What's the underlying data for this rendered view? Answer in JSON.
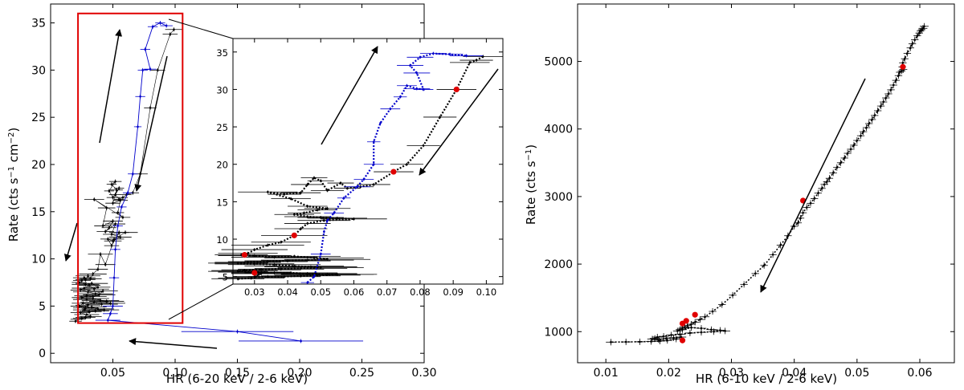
{
  "chart_data": [
    {
      "id": "left",
      "type": "scatter",
      "xlabel": "HR (6-20 keV / 2-6 keV)",
      "ylabel": "Rate (cts s$^{-1}$ cm$^{-2}$)",
      "xlim": [
        0.0,
        0.3
      ],
      "ylim": [
        -1.0,
        37.0
      ],
      "xticks": [
        "0.05",
        "0.10",
        "0.15",
        "0.20",
        "0.25",
        "0.30"
      ],
      "yticks": [
        "0",
        "5",
        "10",
        "15",
        "20",
        "25",
        "30",
        "35"
      ],
      "highlight_box": {
        "x": [
          0.022,
          0.106
        ],
        "y": [
          3.2,
          36.0
        ],
        "color": "#e00000"
      },
      "series": [
        {
          "color": "#0000cc",
          "x": [
            0.201,
            0.15,
            0.046,
            0.048,
            0.05,
            0.051,
            0.052,
            0.054,
            0.057,
            0.062,
            0.066,
            0.07,
            0.072,
            0.074,
            0.08,
            0.076,
            0.082,
            0.088,
            0.093
          ],
          "y": [
            1.3,
            2.3,
            3.5,
            4.2,
            5.0,
            8.0,
            11.0,
            13.5,
            15.5,
            17.0,
            19.0,
            24.0,
            27.2,
            30.0,
            30.1,
            32.2,
            34.6,
            35.0,
            34.7
          ],
          "xerr": [
            0.05,
            0.045,
            0.01,
            0.006,
            0.008,
            0.004,
            0.004,
            0.004,
            0.004,
            0.004,
            0.004,
            0.003,
            0.004,
            0.004,
            0.005,
            0.004,
            0.004,
            0.004,
            0.005
          ]
        },
        {
          "color": "#000000",
          "x": [
            0.099,
            0.096,
            0.086,
            0.08,
            0.072,
            0.066,
            0.061,
            0.058,
            0.055,
            0.052,
            0.055,
            0.05,
            0.047,
            0.052,
            0.049,
            0.053,
            0.05,
            0.056,
            0.054,
            0.058,
            0.035,
            0.045,
            0.042,
            0.05,
            0.047,
            0.044,
            0.052,
            0.049,
            0.056,
            0.05,
            0.046,
            0.049,
            0.055,
            0.06,
            0.051,
            0.044,
            0.04,
            0.038,
            0.034,
            0.032,
            0.03,
            0.028,
            0.027,
            0.025,
            0.023,
            0.028,
            0.033,
            0.038,
            0.035,
            0.031,
            0.027,
            0.024,
            0.03,
            0.036,
            0.042,
            0.039,
            0.034,
            0.029,
            0.025,
            0.029,
            0.034,
            0.04,
            0.045,
            0.048,
            0.041,
            0.035,
            0.03,
            0.026,
            0.023,
            0.028,
            0.033,
            0.038,
            0.043,
            0.036,
            0.031,
            0.027,
            0.024,
            0.029,
            0.032,
            0.028,
            0.025,
            0.022,
            0.02
          ],
          "y": [
            34.3,
            33.8,
            30.0,
            26.0,
            19.0,
            17.0,
            16.8,
            16.5,
            16.3,
            16.8,
            17.5,
            16.5,
            17.2,
            18.2,
            17.9,
            17.3,
            15.9,
            16.2,
            14.9,
            14.4,
            16.3,
            15.4,
            13.5,
            14.0,
            13.3,
            12.9,
            13.7,
            12.6,
            12.3,
            11.9,
            12.1,
            11.4,
            12.8,
            12.8,
            12.1,
            9.4,
            10.5,
            8.9,
            8.4,
            7.9,
            8.2,
            7.8,
            8.0,
            7.7,
            7.5,
            7.3,
            7.4,
            7.0,
            6.8,
            7.2,
            6.9,
            6.7,
            6.5,
            6.3,
            6.6,
            6.2,
            6.0,
            6.1,
            5.9,
            5.7,
            5.8,
            5.6,
            5.5,
            5.3,
            5.2,
            5.4,
            5.1,
            5.3,
            5.0,
            4.8,
            4.9,
            4.7,
            4.6,
            4.5,
            4.4,
            4.6,
            4.3,
            4.1,
            3.9,
            3.8,
            3.7,
            3.6,
            3.4
          ],
          "xerr": [
            0.007,
            0.006,
            0.006,
            0.005,
            0.006,
            0.005,
            0.004,
            0.004,
            0.004,
            0.005,
            0.004,
            0.005,
            0.004,
            0.005,
            0.004,
            0.005,
            0.006,
            0.006,
            0.005,
            0.006,
            0.008,
            0.007,
            0.007,
            0.008,
            0.006,
            0.007,
            0.008,
            0.007,
            0.009,
            0.007,
            0.006,
            0.006,
            0.008,
            0.01,
            0.008,
            0.008,
            0.01,
            0.008,
            0.011,
            0.009,
            0.01,
            0.008,
            0.009,
            0.007,
            0.006,
            0.011,
            0.013,
            0.01,
            0.012,
            0.009,
            0.01,
            0.008,
            0.012,
            0.014,
            0.012,
            0.013,
            0.011,
            0.01,
            0.008,
            0.011,
            0.013,
            0.015,
            0.014,
            0.012,
            0.013,
            0.011,
            0.01,
            0.009,
            0.007,
            0.01,
            0.012,
            0.013,
            0.012,
            0.011,
            0.01,
            0.009,
            0.008,
            0.01,
            0.009,
            0.008,
            0.007,
            0.006,
            0.005
          ]
        }
      ]
    },
    {
      "id": "inset",
      "type": "scatter",
      "xlim": [
        0.0235,
        0.105
      ],
      "ylim": [
        4.0,
        36.8
      ],
      "xticks": [
        "0.03",
        "0.04",
        "0.05",
        "0.06",
        "0.07",
        "0.08",
        "0.09",
        "0.10"
      ],
      "yticks": [
        "5",
        "10",
        "15",
        "20",
        "25",
        "30",
        "35"
      ],
      "series": [
        {
          "color": "#0000cc",
          "x": [
            0.046,
            0.048,
            0.05,
            0.051,
            0.052,
            0.054,
            0.057,
            0.061,
            0.063,
            0.066,
            0.066,
            0.068,
            0.071,
            0.074,
            0.076,
            0.079,
            0.081,
            0.079,
            0.077,
            0.08,
            0.084,
            0.089,
            0.094
          ],
          "y": [
            4.2,
            5.0,
            8.0,
            11.0,
            12.5,
            13.5,
            15.5,
            17.0,
            18.0,
            20.0,
            23.0,
            25.5,
            27.4,
            29.0,
            30.5,
            30.1,
            30.0,
            32.2,
            33.2,
            34.3,
            34.8,
            34.7,
            34.5
          ],
          "xerr": [
            0.002,
            0.0,
            0.003,
            0.0,
            0.0,
            0.003,
            0.002,
            0.004,
            0.003,
            0.003,
            0.002,
            0.0,
            0.003,
            0.002,
            0.003,
            0.004,
            0.003,
            0.004,
            0.004,
            0.004,
            0.004,
            0.004,
            0.005
          ]
        },
        {
          "color": "#000000",
          "x": [
            0.099,
            0.097,
            0.095,
            0.091,
            0.086,
            0.081,
            0.076,
            0.072,
            0.066,
            0.062,
            0.058,
            0.056,
            0.052,
            0.05,
            0.048,
            0.046,
            0.044,
            0.039,
            0.034,
            0.041,
            0.046,
            0.052,
            0.049,
            0.045,
            0.042,
            0.046,
            0.05,
            0.055,
            0.06,
            0.051,
            0.046,
            0.044,
            0.042,
            0.038,
            0.034,
            0.03,
            0.028,
            0.026,
            0.03,
            0.036,
            0.042,
            0.048,
            0.052,
            0.046,
            0.04,
            0.034,
            0.028,
            0.025,
            0.03,
            0.036,
            0.042,
            0.047,
            0.05,
            0.044,
            0.038,
            0.032,
            0.027,
            0.025,
            0.03,
            0.036,
            0.041,
            0.046,
            0.052,
            0.055,
            0.049,
            0.044,
            0.039,
            0.034,
            0.03,
            0.032,
            0.029,
            0.025
          ],
          "y": [
            34.4,
            33.9,
            33.6,
            30.0,
            26.3,
            22.5,
            20.0,
            19.0,
            17.3,
            17.0,
            16.8,
            17.5,
            16.5,
            17.8,
            18.2,
            17.3,
            16.2,
            16.0,
            16.3,
            15.4,
            14.4,
            14.1,
            13.9,
            13.5,
            13.3,
            13.0,
            12.9,
            12.8,
            12.7,
            12.5,
            12.1,
            11.4,
            10.5,
            9.6,
            9.2,
            8.6,
            8.1,
            7.9,
            7.8,
            7.6,
            7.7,
            7.5,
            7.3,
            7.2,
            7.1,
            7.0,
            6.9,
            6.8,
            6.7,
            6.6,
            6.4,
            6.3,
            6.2,
            6.1,
            6.0,
            5.9,
            5.8,
            5.7,
            5.6,
            5.5,
            5.5,
            5.4,
            5.3,
            5.3,
            5.2,
            5.1,
            5.0,
            5.0,
            4.9,
            5.4,
            4.8,
            4.7
          ],
          "xerr": [
            0.006,
            0.005,
            0.006,
            0.006,
            0.005,
            0.005,
            0.005,
            0.006,
            0.005,
            0.004,
            0.004,
            0.004,
            0.005,
            0.004,
            0.004,
            0.005,
            0.006,
            0.005,
            0.009,
            0.006,
            0.006,
            0.007,
            0.006,
            0.005,
            0.006,
            0.007,
            0.007,
            0.009,
            0.01,
            0.008,
            0.007,
            0.008,
            0.01,
            0.009,
            0.011,
            0.01,
            0.009,
            0.008,
            0.011,
            0.013,
            0.014,
            0.015,
            0.013,
            0.014,
            0.013,
            0.012,
            0.01,
            0.009,
            0.012,
            0.014,
            0.015,
            0.014,
            0.013,
            0.014,
            0.013,
            0.012,
            0.01,
            0.009,
            0.011,
            0.013,
            0.014,
            0.015,
            0.014,
            0.012,
            0.013,
            0.012,
            0.011,
            0.01,
            0.009,
            0.009,
            0.01,
            0.008
          ]
        }
      ],
      "red_points": {
        "x": [
          0.091,
          0.072,
          0.042,
          0.027,
          0.03
        ],
        "y": [
          30.0,
          19.0,
          10.5,
          7.9,
          5.5
        ],
        "color": "#e00000"
      }
    },
    {
      "id": "right",
      "type": "scatter",
      "xlabel": "HR (6-10 keV / 2-6 keV)",
      "ylabel": "Rate (cts s$^{-1}$)",
      "xlim": [
        0.0055,
        0.0655
      ],
      "ylim": [
        540,
        5850
      ],
      "xticks": [
        "0.01",
        "0.02",
        "0.03",
        "0.04",
        "0.05",
        "0.06"
      ],
      "yticks": [
        "1000",
        "2000",
        "3000",
        "4000",
        "5000"
      ],
      "series": [
        {
          "color": "#000000",
          "x": [
            0.0607,
            0.0605,
            0.0603,
            0.0601,
            0.0599,
            0.0596,
            0.0592,
            0.0588,
            0.0585,
            0.058,
            0.0576,
            0.0573,
            0.0572,
            0.0574,
            0.0571,
            0.0568,
            0.0566,
            0.0562,
            0.0558,
            0.0554,
            0.055,
            0.0546,
            0.0542,
            0.0538,
            0.0533,
            0.0528,
            0.0524,
            0.0519,
            0.0515,
            0.051,
            0.0506,
            0.05,
            0.0495,
            0.049,
            0.0485,
            0.048,
            0.0474,
            0.0468,
            0.0462,
            0.0456,
            0.0452,
            0.0448,
            0.0444,
            0.0438,
            0.0432,
            0.0426,
            0.042,
            0.0414,
            0.041,
            0.0406,
            0.04,
            0.039,
            0.0378,
            0.0366,
            0.0352,
            0.0338,
            0.032,
            0.0302,
            0.0285,
            0.027,
            0.0258,
            0.025,
            0.0242,
            0.0236,
            0.023,
            0.0226,
            0.0222,
            0.0218,
            0.0214,
            0.0222,
            0.0236,
            0.0252,
            0.0268,
            0.0282,
            0.029,
            0.0272,
            0.0252,
            0.0234,
            0.0218,
            0.0204,
            0.0192,
            0.0182,
            0.0178,
            0.0174,
            0.0184,
            0.0196,
            0.0208,
            0.022,
            0.0212,
            0.0198,
            0.0186,
            0.0172,
            0.0154,
            0.0132,
            0.0108
          ],
          "y": [
            5520,
            5490,
            5470,
            5450,
            5420,
            5380,
            5320,
            5260,
            5200,
            5120,
            5040,
            4980,
            4920,
            4880,
            4860,
            4840,
            4790,
            4720,
            4650,
            4580,
            4520,
            4460,
            4400,
            4340,
            4270,
            4200,
            4140,
            4080,
            4020,
            3960,
            3900,
            3830,
            3760,
            3700,
            3640,
            3570,
            3500,
            3430,
            3350,
            3270,
            3220,
            3180,
            3120,
            3050,
            2970,
            2900,
            2840,
            2760,
            2680,
            2610,
            2560,
            2420,
            2280,
            2140,
            1980,
            1860,
            1700,
            1540,
            1400,
            1300,
            1220,
            1180,
            1140,
            1110,
            1090,
            1070,
            1050,
            1030,
            1010,
            1030,
            1060,
            1050,
            1030,
            1020,
            1010,
            1000,
            990,
            980,
            960,
            950,
            930,
            920,
            900,
            890,
            880,
            900,
            910,
            920,
            890,
            870,
            860,
            855,
            850,
            848,
            845
          ],
          "xerr": [
            0.0007,
            0.0007,
            0.0006,
            0.0006,
            0.0006,
            0.0006,
            0.0006,
            0.0006,
            0.0006,
            0.0006,
            0.0006,
            0.0006,
            0.0006,
            0.0006,
            0.0006,
            0.0006,
            0.0006,
            0.0006,
            0.0006,
            0.0006,
            0.0006,
            0.0006,
            0.0006,
            0.0006,
            0.0006,
            0.0006,
            0.0006,
            0.0006,
            0.0006,
            0.0006,
            0.0006,
            0.0006,
            0.0006,
            0.0006,
            0.0006,
            0.0006,
            0.0006,
            0.0006,
            0.0006,
            0.0006,
            0.0006,
            0.0006,
            0.0006,
            0.0006,
            0.0006,
            0.0006,
            0.0006,
            0.0006,
            0.0006,
            0.0006,
            0.0006,
            0.0006,
            0.0006,
            0.0006,
            0.0006,
            0.0006,
            0.0006,
            0.0006,
            0.0006,
            0.0006,
            0.0007,
            0.0007,
            0.0007,
            0.0007,
            0.0007,
            0.0007,
            0.0007,
            0.0007,
            0.0007,
            0.0007,
            0.0008,
            0.0008,
            0.0008,
            0.0008,
            0.0008,
            0.0008,
            0.0008,
            0.0008,
            0.0008,
            0.0008,
            0.0008,
            0.0008,
            0.0008,
            0.0008,
            0.0008,
            0.0008,
            0.0008,
            0.0008,
            0.0008,
            0.0008,
            0.0008,
            0.0008,
            0.0008,
            0.0008,
            0.0008
          ]
        }
      ],
      "red_points": {
        "x": [
          0.0573,
          0.0414,
          0.0242,
          0.0228,
          0.0222,
          0.0222
        ],
        "y": [
          4920,
          2940,
          1250,
          1160,
          1120,
          870
        ],
        "color": "#e00000"
      }
    }
  ]
}
